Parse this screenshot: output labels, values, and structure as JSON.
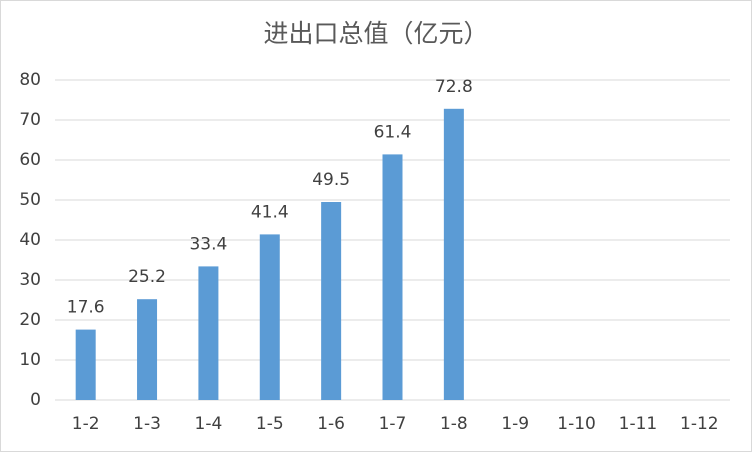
{
  "chart_data": {
    "type": "bar",
    "title": "进出口总值（亿元）",
    "categories": [
      "1-2",
      "1-3",
      "1-4",
      "1-5",
      "1-6",
      "1-7",
      "1-8",
      "1-9",
      "1-10",
      "1-11",
      "1-12"
    ],
    "values": [
      17.6,
      25.2,
      33.4,
      41.4,
      49.5,
      61.4,
      72.8,
      null,
      null,
      null,
      null
    ],
    "color": "#5b9bd5",
    "ylim": [
      0,
      80
    ],
    "yticks": [
      0,
      10,
      20,
      30,
      40,
      50,
      60,
      70,
      80
    ],
    "grid": true
  }
}
